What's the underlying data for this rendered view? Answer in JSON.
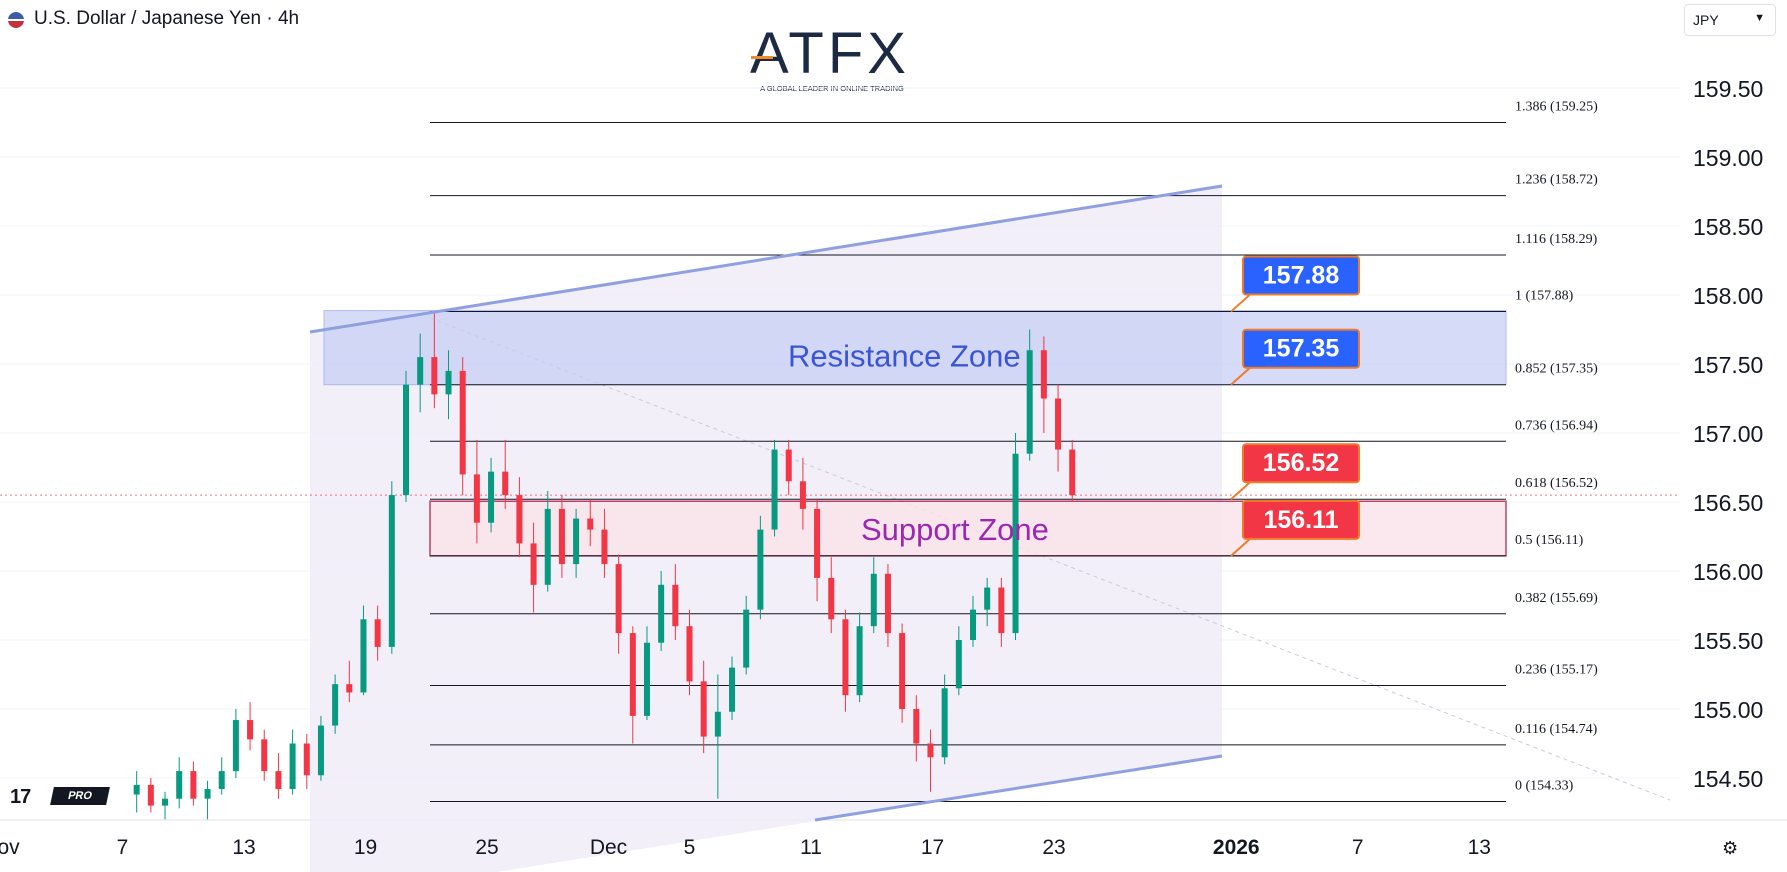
{
  "header": {
    "symbol": "U.S. Dollar / Japanese Yen · 4h",
    "currency_selector": "JPY",
    "flag_icon": "us-jp-flag-icon"
  },
  "logo": {
    "name": "ATFX",
    "tagline": "A GLOBAL LEADER IN ONLINE TRADING"
  },
  "branding": {
    "tv_mark": "17",
    "tv_badge": "PRO"
  },
  "colors": {
    "bull": "#089981",
    "bear": "#f23645",
    "fib_line": "#131722",
    "resistance_fill": "#c5cdf5",
    "support_fill": "#fbe3ea",
    "support_border": "#b2193f",
    "channel_fill": "#ede9f7",
    "trendline": "#8f9fe0",
    "label_blue": "#2962ff",
    "label_red": "#f23645",
    "label_border": "#ef7b2a"
  },
  "chart_data": {
    "type": "candlestick",
    "title": "U.S. Dollar / Japanese Yen · 4h",
    "y_axis": {
      "range": [
        154.2,
        159.8
      ],
      "ticks": [
        "159.50",
        "159.00",
        "158.50",
        "158.00",
        "157.50",
        "157.00",
        "156.50",
        "156.00",
        "155.50",
        "155.00",
        "154.50"
      ]
    },
    "x_axis": {
      "ticks": [
        {
          "label": "Nov",
          "day": 1
        },
        {
          "label": "7",
          "day": 7
        },
        {
          "label": "13",
          "day": 13
        },
        {
          "label": "19",
          "day": 19
        },
        {
          "label": "25",
          "day": 25
        },
        {
          "label": "Dec",
          "day": 31
        },
        {
          "label": "5",
          "day": 35
        },
        {
          "label": "11",
          "day": 41
        },
        {
          "label": "17",
          "day": 47
        },
        {
          "label": "23",
          "day": 53
        },
        {
          "label": "2026",
          "day": 62
        },
        {
          "label": "7",
          "day": 68
        },
        {
          "label": "13",
          "day": 74
        }
      ]
    },
    "fib_levels": [
      {
        "ratio": "1.386",
        "price": 159.25,
        "label": "1.386 (159.25)"
      },
      {
        "ratio": "1.236",
        "price": 158.72,
        "label": "1.236 (158.72)"
      },
      {
        "ratio": "1.116",
        "price": 158.29,
        "label": "1.116 (158.29)"
      },
      {
        "ratio": "1",
        "price": 157.88,
        "label": "1 (157.88)"
      },
      {
        "ratio": "0.852",
        "price": 157.35,
        "label": "0.852 (157.35)"
      },
      {
        "ratio": "0.736",
        "price": 156.94,
        "label": "0.736 (156.94)"
      },
      {
        "ratio": "0.618",
        "price": 156.52,
        "label": "0.618 (156.52)"
      },
      {
        "ratio": "0.5",
        "price": 156.11,
        "label": "0.5 (156.11)"
      },
      {
        "ratio": "0.382",
        "price": 155.69,
        "label": "0.382 (155.69)"
      },
      {
        "ratio": "0.236",
        "price": 155.17,
        "label": "0.236 (155.17)"
      },
      {
        "ratio": "0.116",
        "price": 154.74,
        "label": "0.116 (154.74)"
      },
      {
        "ratio": "0",
        "price": 154.33,
        "label": "0 (154.33)"
      }
    ],
    "zones": [
      {
        "name": "Resistance Zone",
        "from": 157.35,
        "to": 157.88
      },
      {
        "name": "Support Zone",
        "from": 156.11,
        "to": 156.52
      }
    ],
    "price_labels": [
      {
        "value": "157.88",
        "color": "blue"
      },
      {
        "value": "157.35",
        "color": "blue"
      },
      {
        "value": "156.52",
        "color": "red"
      },
      {
        "value": "156.11",
        "color": "red"
      }
    ],
    "current_price": 156.55,
    "candles": [
      {
        "day": 7.7,
        "o": 154.38,
        "h": 154.55,
        "l": 154.25,
        "c": 154.45
      },
      {
        "day": 8.4,
        "o": 154.45,
        "h": 154.5,
        "l": 154.25,
        "c": 154.3
      },
      {
        "day": 9.1,
        "o": 154.3,
        "h": 154.4,
        "l": 154.2,
        "c": 154.35
      },
      {
        "day": 9.8,
        "o": 154.35,
        "h": 154.65,
        "l": 154.28,
        "c": 154.55
      },
      {
        "day": 10.5,
        "o": 154.55,
        "h": 154.62,
        "l": 154.3,
        "c": 154.35
      },
      {
        "day": 11.2,
        "o": 154.35,
        "h": 154.48,
        "l": 154.2,
        "c": 154.42
      },
      {
        "day": 11.9,
        "o": 154.42,
        "h": 154.65,
        "l": 154.38,
        "c": 154.55
      },
      {
        "day": 12.6,
        "o": 154.55,
        "h": 155.0,
        "l": 154.5,
        "c": 154.92
      },
      {
        "day": 13.3,
        "o": 154.92,
        "h": 155.05,
        "l": 154.7,
        "c": 154.78
      },
      {
        "day": 14.0,
        "o": 154.78,
        "h": 154.85,
        "l": 154.48,
        "c": 154.55
      },
      {
        "day": 14.7,
        "o": 154.55,
        "h": 154.68,
        "l": 154.35,
        "c": 154.42
      },
      {
        "day": 15.4,
        "o": 154.42,
        "h": 154.85,
        "l": 154.38,
        "c": 154.75
      },
      {
        "day": 16.1,
        "o": 154.75,
        "h": 154.82,
        "l": 154.42,
        "c": 154.52
      },
      {
        "day": 16.8,
        "o": 154.52,
        "h": 154.95,
        "l": 154.48,
        "c": 154.88
      },
      {
        "day": 17.5,
        "o": 154.88,
        "h": 155.25,
        "l": 154.82,
        "c": 155.18
      },
      {
        "day": 18.2,
        "o": 155.18,
        "h": 155.35,
        "l": 155.05,
        "c": 155.12
      },
      {
        "day": 18.9,
        "o": 155.12,
        "h": 155.75,
        "l": 155.1,
        "c": 155.65
      },
      {
        "day": 19.6,
        "o": 155.65,
        "h": 155.75,
        "l": 155.35,
        "c": 155.45
      },
      {
        "day": 20.3,
        "o": 155.45,
        "h": 156.65,
        "l": 155.4,
        "c": 156.55
      },
      {
        "day": 21.0,
        "o": 156.55,
        "h": 157.45,
        "l": 156.5,
        "c": 157.35
      },
      {
        "day": 21.7,
        "o": 157.35,
        "h": 157.72,
        "l": 157.15,
        "c": 157.55
      },
      {
        "day": 22.4,
        "o": 157.55,
        "h": 157.88,
        "l": 157.18,
        "c": 157.28
      },
      {
        "day": 23.1,
        "o": 157.28,
        "h": 157.6,
        "l": 157.1,
        "c": 157.45
      },
      {
        "day": 23.8,
        "o": 157.45,
        "h": 157.55,
        "l": 156.55,
        "c": 156.7
      },
      {
        "day": 24.5,
        "o": 156.7,
        "h": 156.95,
        "l": 156.2,
        "c": 156.35
      },
      {
        "day": 25.2,
        "o": 156.35,
        "h": 156.82,
        "l": 156.28,
        "c": 156.72
      },
      {
        "day": 25.9,
        "o": 156.72,
        "h": 156.95,
        "l": 156.45,
        "c": 156.55
      },
      {
        "day": 26.6,
        "o": 156.55,
        "h": 156.68,
        "l": 156.1,
        "c": 156.2
      },
      {
        "day": 27.3,
        "o": 156.2,
        "h": 156.35,
        "l": 155.7,
        "c": 155.9
      },
      {
        "day": 28.0,
        "o": 155.9,
        "h": 156.58,
        "l": 155.85,
        "c": 156.45
      },
      {
        "day": 28.7,
        "o": 156.45,
        "h": 156.55,
        "l": 155.95,
        "c": 156.05
      },
      {
        "day": 29.4,
        "o": 156.05,
        "h": 156.45,
        "l": 155.95,
        "c": 156.38
      },
      {
        "day": 30.1,
        "o": 156.38,
        "h": 156.52,
        "l": 156.18,
        "c": 156.3
      },
      {
        "day": 30.8,
        "o": 156.3,
        "h": 156.45,
        "l": 155.95,
        "c": 156.05
      },
      {
        "day": 31.5,
        "o": 156.05,
        "h": 156.12,
        "l": 155.4,
        "c": 155.55
      },
      {
        "day": 32.2,
        "o": 155.55,
        "h": 155.6,
        "l": 154.75,
        "c": 154.95
      },
      {
        "day": 32.9,
        "o": 154.95,
        "h": 155.6,
        "l": 154.92,
        "c": 155.48
      },
      {
        "day": 33.6,
        "o": 155.48,
        "h": 156.0,
        "l": 155.42,
        "c": 155.9
      },
      {
        "day": 34.3,
        "o": 155.9,
        "h": 156.05,
        "l": 155.5,
        "c": 155.6
      },
      {
        "day": 35.0,
        "o": 155.6,
        "h": 155.72,
        "l": 155.1,
        "c": 155.2
      },
      {
        "day": 35.7,
        "o": 155.2,
        "h": 155.35,
        "l": 154.68,
        "c": 154.8
      },
      {
        "day": 36.4,
        "o": 154.8,
        "h": 155.25,
        "l": 154.35,
        "c": 154.98
      },
      {
        "day": 37.1,
        "o": 154.98,
        "h": 155.38,
        "l": 154.92,
        "c": 155.3
      },
      {
        "day": 37.8,
        "o": 155.3,
        "h": 155.82,
        "l": 155.25,
        "c": 155.72
      },
      {
        "day": 38.5,
        "o": 155.72,
        "h": 156.4,
        "l": 155.65,
        "c": 156.3
      },
      {
        "day": 39.2,
        "o": 156.3,
        "h": 156.95,
        "l": 156.25,
        "c": 156.88
      },
      {
        "day": 39.9,
        "o": 156.88,
        "h": 156.95,
        "l": 156.55,
        "c": 156.65
      },
      {
        "day": 40.6,
        "o": 156.65,
        "h": 156.82,
        "l": 156.3,
        "c": 156.45
      },
      {
        "day": 41.3,
        "o": 156.45,
        "h": 156.52,
        "l": 155.78,
        "c": 155.95
      },
      {
        "day": 42.0,
        "o": 155.95,
        "h": 156.1,
        "l": 155.55,
        "c": 155.65
      },
      {
        "day": 42.7,
        "o": 155.65,
        "h": 155.72,
        "l": 154.98,
        "c": 155.1
      },
      {
        "day": 43.4,
        "o": 155.1,
        "h": 155.7,
        "l": 155.05,
        "c": 155.6
      },
      {
        "day": 44.1,
        "o": 155.6,
        "h": 156.1,
        "l": 155.55,
        "c": 155.98
      },
      {
        "day": 44.8,
        "o": 155.98,
        "h": 156.05,
        "l": 155.45,
        "c": 155.55
      },
      {
        "day": 45.5,
        "o": 155.55,
        "h": 155.62,
        "l": 154.9,
        "c": 155.0
      },
      {
        "day": 46.2,
        "o": 155.0,
        "h": 155.1,
        "l": 154.62,
        "c": 154.75
      },
      {
        "day": 46.9,
        "o": 154.75,
        "h": 154.85,
        "l": 154.4,
        "c": 154.65
      },
      {
        "day": 47.6,
        "o": 154.65,
        "h": 155.25,
        "l": 154.6,
        "c": 155.15
      },
      {
        "day": 48.3,
        "o": 155.15,
        "h": 155.6,
        "l": 155.1,
        "c": 155.5
      },
      {
        "day": 49.0,
        "o": 155.5,
        "h": 155.82,
        "l": 155.45,
        "c": 155.72
      },
      {
        "day": 49.7,
        "o": 155.72,
        "h": 155.95,
        "l": 155.6,
        "c": 155.88
      },
      {
        "day": 50.4,
        "o": 155.88,
        "h": 155.95,
        "l": 155.45,
        "c": 155.55
      },
      {
        "day": 51.1,
        "o": 155.55,
        "h": 157.0,
        "l": 155.5,
        "c": 156.85
      },
      {
        "day": 51.8,
        "o": 156.85,
        "h": 157.75,
        "l": 156.8,
        "c": 157.6
      },
      {
        "day": 52.5,
        "o": 157.6,
        "h": 157.7,
        "l": 157.0,
        "c": 157.25
      },
      {
        "day": 53.2,
        "o": 157.25,
        "h": 157.35,
        "l": 156.72,
        "c": 156.88
      },
      {
        "day": 53.9,
        "o": 156.88,
        "h": 156.95,
        "l": 156.5,
        "c": 156.55
      }
    ]
  }
}
